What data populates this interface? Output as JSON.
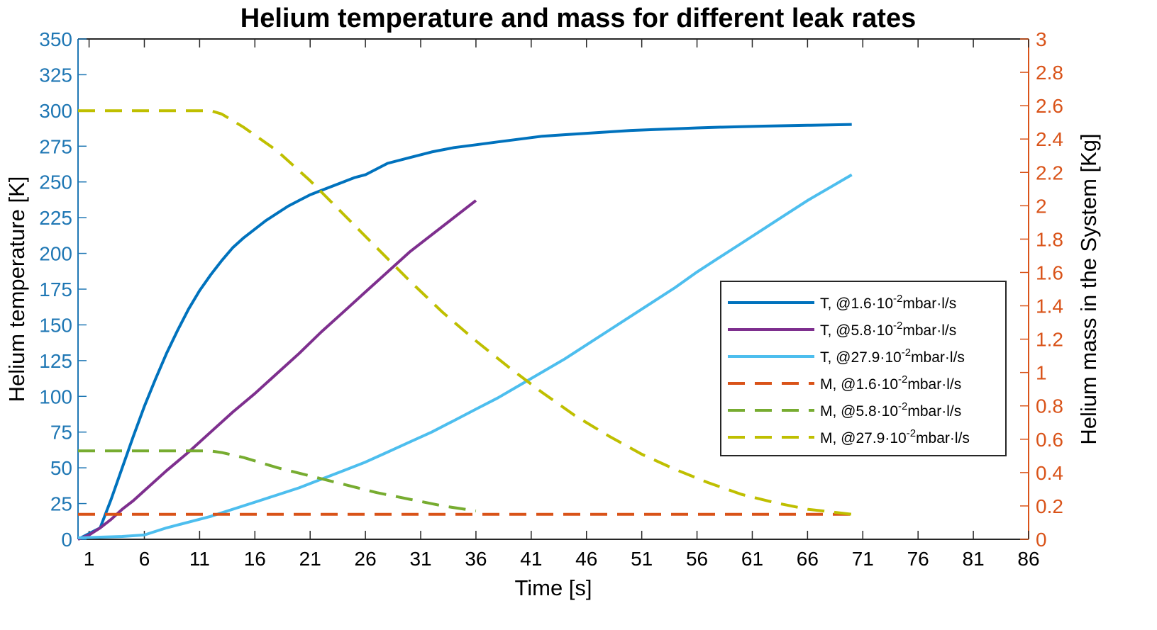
{
  "chart_data": {
    "type": "line",
    "title": "Helium temperature and mass for different leak rates",
    "xlabel": "Time [s]",
    "ylabel_left": "Helium temperature [K]",
    "ylabel_right": "Helium mass in the System [Kg]",
    "xlim": [
      0,
      86
    ],
    "ylim_left": [
      0,
      350
    ],
    "ylim_right": [
      0,
      3
    ],
    "x_ticks": [
      1,
      6,
      11,
      16,
      21,
      26,
      31,
      36,
      41,
      46,
      51,
      56,
      61,
      66,
      71,
      76,
      81,
      86
    ],
    "y_ticks_left": [
      0,
      25,
      50,
      75,
      100,
      125,
      150,
      175,
      200,
      225,
      250,
      275,
      300,
      325,
      350
    ],
    "y_ticks_right": [
      "0",
      "0.2",
      "0.4",
      "0.6",
      "0.8",
      "1",
      "1.2",
      "1.4",
      "1.6",
      "1.8",
      "2",
      "2.2",
      "2.4",
      "2.6",
      "2.8",
      "3"
    ],
    "grid": false,
    "legend_position": "right",
    "colors": {
      "left_axis": "#1f77b4",
      "right_axis": "#d95319"
    },
    "series": [
      {
        "name": "T, @1.6·10^-2mbar·l/s",
        "legend": {
          "prefix": "T, @1.6·10",
          "exp": "-2",
          "suffix": "mbar·l/s"
        },
        "axis": "left",
        "style": "solid",
        "color": "#0072bd",
        "x": [
          0,
          1,
          2,
          3,
          4,
          5,
          6,
          7,
          8,
          9,
          10,
          11,
          12,
          13,
          14,
          15,
          16,
          17,
          18,
          19,
          20,
          21,
          22,
          23,
          24,
          25,
          26,
          28,
          30,
          32,
          34,
          36,
          38,
          40,
          42,
          44,
          46,
          48,
          50,
          52,
          54,
          56,
          58,
          60,
          62,
          64,
          66,
          68,
          70
        ],
        "y": [
          0,
          4,
          8,
          28,
          50,
          72,
          93,
          112,
          130,
          146,
          161,
          174,
          185,
          195,
          204,
          211,
          217,
          223,
          228,
          233,
          237,
          241,
          244,
          247,
          250,
          253,
          255,
          263,
          267,
          271,
          274,
          276,
          278,
          280,
          282,
          283,
          284,
          285,
          286,
          286.6,
          287.2,
          287.8,
          288.3,
          288.7,
          289,
          289.3,
          289.6,
          289.9,
          290.2
        ]
      },
      {
        "name": "T, @5.8·10^-2mbar·l/s",
        "legend": {
          "prefix": "T, @5.8·10",
          "exp": "-2",
          "suffix": "mbar·l/s"
        },
        "axis": "left",
        "style": "solid",
        "color": "#7e2f8e",
        "x": [
          0,
          1,
          2,
          3,
          4,
          5,
          6,
          8,
          10,
          12,
          14,
          16,
          18,
          20,
          22,
          24,
          26,
          28,
          30,
          32,
          34,
          36
        ],
        "y": [
          0,
          3,
          8,
          14,
          21,
          27,
          34,
          48,
          61,
          75,
          89,
          102,
          116,
          130,
          145,
          159,
          173,
          187,
          201,
          213,
          225,
          237
        ]
      },
      {
        "name": "T, @27.9·10^-2mbar·l/s",
        "legend": {
          "prefix": "T, @27.9·10",
          "exp": "-2",
          "suffix": "mbar·l/s"
        },
        "axis": "left",
        "style": "solid",
        "color": "#4dbeee",
        "x": [
          0,
          2,
          4,
          6,
          8,
          10,
          12,
          14,
          16,
          18,
          20,
          22,
          24,
          26,
          28,
          30,
          32,
          34,
          36,
          38,
          40,
          42,
          44,
          46,
          48,
          50,
          52,
          54,
          56,
          58,
          60,
          62,
          64,
          66,
          68,
          70
        ],
        "y": [
          1,
          1.5,
          2,
          3,
          8,
          12,
          16,
          21,
          26,
          31,
          36,
          42,
          48,
          54,
          61,
          68,
          75,
          83,
          91,
          99,
          108,
          117,
          126,
          136,
          146,
          156,
          166,
          176,
          187,
          197,
          207,
          217,
          227,
          237,
          246,
          255
        ]
      },
      {
        "name": "M, @1.6·10^-2mbar·l/s",
        "legend": {
          "prefix": "M, @1.6·10",
          "exp": "-2",
          "suffix": "mbar·l/s"
        },
        "axis": "right",
        "style": "dashed",
        "color": "#d95319",
        "x": [
          0,
          70
        ],
        "y": [
          0.15,
          0.15
        ]
      },
      {
        "name": "M, @5.8·10^-2mbar·l/s",
        "legend": {
          "prefix": "M, @5.8·10",
          "exp": "-2",
          "suffix": "mbar·l/s"
        },
        "axis": "right",
        "style": "dashed",
        "color": "#77ac30",
        "x": [
          0,
          12,
          13,
          15,
          18,
          21,
          24,
          27,
          30,
          33,
          36
        ],
        "y": [
          0.53,
          0.53,
          0.52,
          0.49,
          0.43,
          0.38,
          0.33,
          0.28,
          0.24,
          0.2,
          0.17
        ]
      },
      {
        "name": "M, @27.9·10^-2mbar·l/s",
        "legend": {
          "prefix": "M, @27.9·10",
          "exp": "-2",
          "suffix": "mbar·l/s"
        },
        "axis": "right",
        "style": "dashed",
        "color": "#bfbf00",
        "x": [
          0,
          12,
          13,
          15,
          18,
          21,
          24,
          27,
          30,
          33,
          36,
          39,
          42,
          45,
          48,
          51,
          54,
          57,
          60,
          63,
          66,
          70
        ],
        "y": [
          2.57,
          2.57,
          2.55,
          2.47,
          2.33,
          2.15,
          1.95,
          1.75,
          1.55,
          1.36,
          1.19,
          1.03,
          0.88,
          0.74,
          0.62,
          0.51,
          0.42,
          0.34,
          0.27,
          0.22,
          0.18,
          0.15
        ]
      }
    ]
  }
}
